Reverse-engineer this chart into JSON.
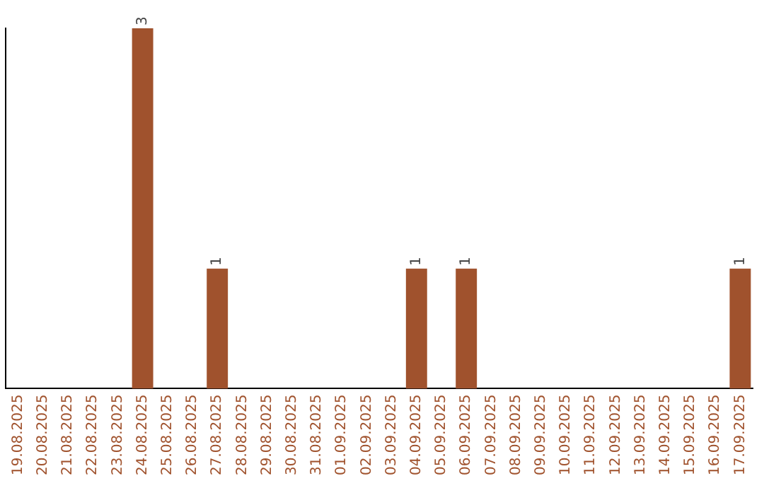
{
  "chart_data": {
    "type": "bar",
    "categories": [
      "19.08.2025",
      "20.08.2025",
      "21.08.2025",
      "22.08.2025",
      "23.08.2025",
      "24.08.2025",
      "25.08.2025",
      "26.08.2025",
      "27.08.2025",
      "28.08.2025",
      "29.08.2025",
      "30.08.2025",
      "31.08.2025",
      "01.09.2025",
      "02.09.2025",
      "03.09.2025",
      "04.09.2025",
      "05.09.2025",
      "06.09.2025",
      "07.09.2025",
      "08.09.2025",
      "09.09.2025",
      "10.09.2025",
      "11.09.2025",
      "12.09.2025",
      "13.09.2025",
      "14.09.2025",
      "15.09.2025",
      "16.09.2025",
      "17.09.2025"
    ],
    "values": [
      0,
      0,
      0,
      0,
      0,
      3,
      0,
      0,
      1,
      0,
      0,
      0,
      0,
      0,
      0,
      0,
      1,
      0,
      1,
      0,
      0,
      0,
      0,
      0,
      0,
      0,
      0,
      0,
      0,
      1
    ],
    "value_labels": [
      null,
      null,
      null,
      null,
      null,
      "3",
      null,
      null,
      "1",
      null,
      null,
      null,
      null,
      null,
      null,
      null,
      "1",
      null,
      "1",
      null,
      null,
      null,
      null,
      null,
      null,
      null,
      null,
      null,
      null,
      "1"
    ],
    "color": "#a0522d",
    "ylim": [
      0,
      3
    ],
    "grid": false,
    "legend": false,
    "tick_labels": "x"
  }
}
